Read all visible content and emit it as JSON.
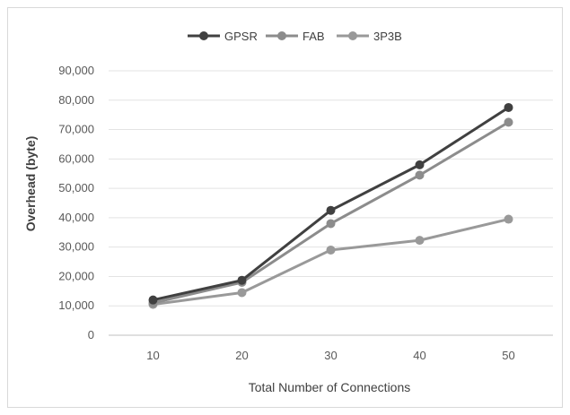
{
  "chart_data": {
    "type": "line",
    "title": "",
    "xlabel": "Total Number of Connections",
    "ylabel": "Overhead (byte)",
    "categories": [
      "10",
      "20",
      "30",
      "40",
      "50"
    ],
    "y_ticks": [
      "0",
      "10,000",
      "20,000",
      "30,000",
      "40,000",
      "50,000",
      "60,000",
      "70,000",
      "80,000",
      "90,000"
    ],
    "ylim": [
      0,
      90000
    ],
    "grid": true,
    "legend_position": "top",
    "series": [
      {
        "name": "GPSR",
        "color": "#404040",
        "values": [
          12000,
          18700,
          42500,
          58000,
          77500
        ]
      },
      {
        "name": "FAB",
        "color": "#8c8c8c",
        "values": [
          11000,
          18000,
          38000,
          54500,
          72500
        ]
      },
      {
        "name": "3P3B",
        "color": "#999999",
        "values": [
          10500,
          14500,
          29000,
          32300,
          39500
        ]
      }
    ]
  }
}
